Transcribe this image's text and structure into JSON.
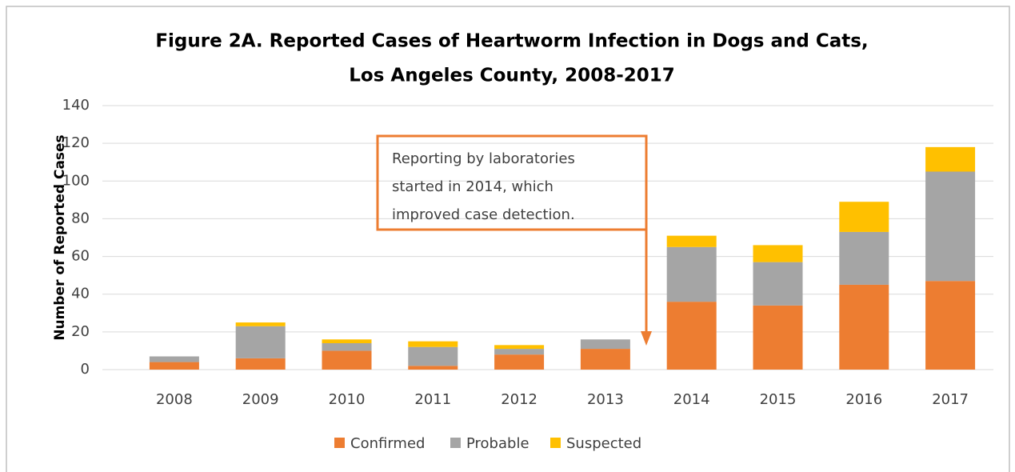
{
  "chart_data": {
    "type": "stacked_bar",
    "title": [
      "Figure 2A.  Reported Cases of Heartworm Infection in Dogs and Cats,",
      "Los Angeles County, 2008-2017"
    ],
    "y_label": "Number of Reported Cases",
    "annotation": [
      "Reporting by laboratories",
      "started in 2014, which",
      "improved case detection."
    ],
    "categories": [
      "2008",
      "2009",
      "2010",
      "2011",
      "2012",
      "2013",
      "2014",
      "2015",
      "2016",
      "2017"
    ],
    "series": [
      {
        "name": "Confirmed",
        "color": "#ed7d31",
        "values": [
          4,
          6,
          10,
          2,
          8,
          11,
          36,
          34,
          45,
          47
        ]
      },
      {
        "name": "Probable",
        "color": "#a5a5a5",
        "values": [
          3,
          17,
          4,
          10,
          3,
          5,
          29,
          23,
          28,
          58
        ]
      },
      {
        "name": "Suspected",
        "color": "#ffc000",
        "values": [
          0,
          2,
          2,
          3,
          2,
          0,
          6,
          9,
          16,
          13
        ]
      }
    ],
    "ylim": [
      0,
      140
    ],
    "yticks": [
      0,
      20,
      40,
      60,
      80,
      100,
      120,
      140
    ],
    "grid": true,
    "legend": "bottom"
  }
}
